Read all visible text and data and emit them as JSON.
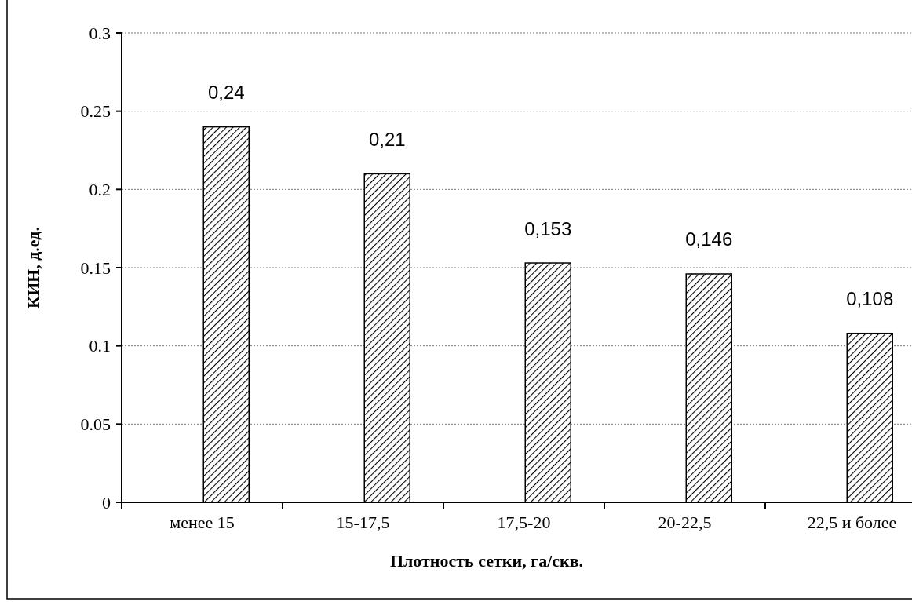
{
  "chart_data": {
    "type": "bar",
    "xlabel": "Плотность сетки, га/скв.",
    "ylabel": "КИН, д.ед.",
    "categories": [
      "менее 15",
      "15-17,5",
      "17,5-20",
      "20-22,5",
      "22,5 и более"
    ],
    "values": [
      0.24,
      0.21,
      0.153,
      0.146,
      0.108
    ],
    "value_labels": [
      "0,24",
      "0,21",
      "0,153",
      "0,146",
      "0,108"
    ],
    "color": "#000000",
    "ylim": [
      0,
      0.3
    ],
    "yticks": [
      0,
      0.05,
      0.1,
      0.15,
      0.2,
      0.25,
      0.3
    ],
    "grid": "y"
  }
}
